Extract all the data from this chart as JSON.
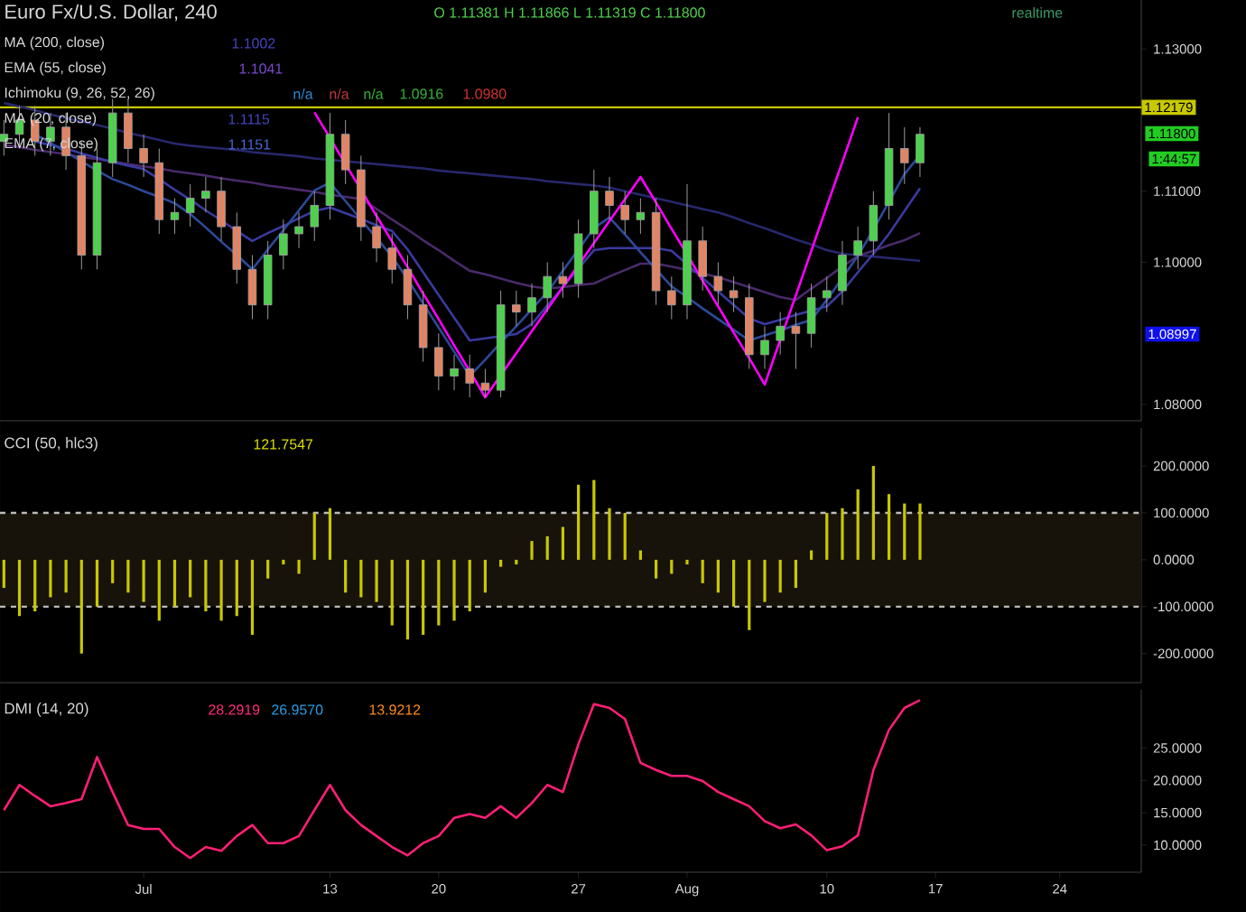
{
  "chart_data": [
    {
      "type": "candlestick",
      "title": "Euro Fx/U.S. Dollar, 240",
      "annotations": [
        "O 1.11381 H 1.11866 L 1.11319 C 1.11800",
        "realtime",
        "MA (200, close)",
        "1.1002",
        "EMA (55, close)",
        "1.1041",
        "Ichimoku (9, 26, 52, 26)",
        "n/a",
        "n/a",
        "n/a",
        "1.0916",
        "1.0980",
        "MA (20, close)",
        "1.1115",
        "EMA (7, close)",
        "1.1151",
        "1:44:57",
        "1.11800",
        "1.08997"
      ],
      "categories": [
        null,
        null,
        null,
        null,
        null,
        null,
        null,
        null,
        null,
        null,
        null,
        null,
        null,
        null,
        null,
        null,
        null,
        null,
        null,
        null,
        null,
        null,
        null,
        null,
        null,
        null,
        null,
        null,
        null,
        null,
        null,
        null,
        null,
        null,
        null,
        null,
        null,
        null,
        null,
        null,
        null,
        null,
        null,
        null,
        null,
        null,
        null,
        null,
        null,
        null,
        null,
        null,
        null,
        null,
        null,
        null,
        null,
        null,
        null,
        null,
        null,
        null,
        null,
        null,
        null,
        null,
        null,
        null,
        null,
        null,
        null,
        null,
        null,
        null
      ],
      "ohlc": [
        [
          1.117,
          1.12,
          1.115,
          1.118
        ],
        [
          1.118,
          1.122,
          1.116,
          1.12
        ],
        [
          1.12,
          1.122,
          1.115,
          1.117
        ],
        [
          1.117,
          1.121,
          1.115,
          1.119
        ],
        [
          1.119,
          1.121,
          1.113,
          1.115
        ],
        [
          1.115,
          1.117,
          1.099,
          1.101
        ],
        [
          1.101,
          1.116,
          1.099,
          1.114
        ],
        [
          1.114,
          1.123,
          1.112,
          1.121
        ],
        [
          1.121,
          1.123,
          1.114,
          1.116
        ],
        [
          1.116,
          1.118,
          1.112,
          1.114
        ],
        [
          1.114,
          1.116,
          1.104,
          1.106
        ],
        [
          1.106,
          1.109,
          1.104,
          1.107
        ],
        [
          1.107,
          1.111,
          1.105,
          1.109
        ],
        [
          1.109,
          1.112,
          1.107,
          1.11
        ],
        [
          1.11,
          1.112,
          1.103,
          1.105
        ],
        [
          1.105,
          1.107,
          1.097,
          1.099
        ],
        [
          1.099,
          1.101,
          1.092,
          1.094
        ],
        [
          1.094,
          1.103,
          1.092,
          1.101
        ],
        [
          1.101,
          1.106,
          1.099,
          1.104
        ],
        [
          1.104,
          1.107,
          1.102,
          1.105
        ],
        [
          1.105,
          1.11,
          1.103,
          1.108
        ],
        [
          1.108,
          1.121,
          1.106,
          1.118
        ],
        [
          1.118,
          1.12,
          1.111,
          1.113
        ],
        [
          1.113,
          1.115,
          1.103,
          1.105
        ],
        [
          1.105,
          1.107,
          1.1,
          1.102
        ],
        [
          1.102,
          1.104,
          1.097,
          1.099
        ],
        [
          1.099,
          1.101,
          1.092,
          1.094
        ],
        [
          1.094,
          1.096,
          1.086,
          1.088
        ],
        [
          1.088,
          1.09,
          1.082,
          1.084
        ],
        [
          1.084,
          1.087,
          1.082,
          1.085
        ],
        [
          1.085,
          1.087,
          1.081,
          1.083
        ],
        [
          1.083,
          1.085,
          1.081,
          1.082
        ],
        [
          1.082,
          1.096,
          1.081,
          1.094
        ],
        [
          1.094,
          1.096,
          1.091,
          1.093
        ],
        [
          1.093,
          1.097,
          1.091,
          1.095
        ],
        [
          1.095,
          1.1,
          1.093,
          1.098
        ],
        [
          1.098,
          1.1,
          1.095,
          1.097
        ],
        [
          1.097,
          1.106,
          1.095,
          1.104
        ],
        [
          1.104,
          1.113,
          1.102,
          1.11
        ],
        [
          1.11,
          1.112,
          1.106,
          1.108
        ],
        [
          1.108,
          1.11,
          1.104,
          1.106
        ],
        [
          1.106,
          1.109,
          1.104,
          1.107
        ],
        [
          1.107,
          1.109,
          1.094,
          1.096
        ],
        [
          1.096,
          1.098,
          1.092,
          1.094
        ],
        [
          1.094,
          1.111,
          1.092,
          1.103
        ],
        [
          1.103,
          1.105,
          1.096,
          1.098
        ],
        [
          1.098,
          1.1,
          1.094,
          1.096
        ],
        [
          1.096,
          1.098,
          1.093,
          1.095
        ],
        [
          1.095,
          1.097,
          1.085,
          1.087
        ],
        [
          1.087,
          1.091,
          1.085,
          1.089
        ],
        [
          1.089,
          1.093,
          1.087,
          1.091
        ],
        [
          1.091,
          1.093,
          1.085,
          1.09
        ],
        [
          1.09,
          1.097,
          1.088,
          1.095
        ],
        [
          1.095,
          1.098,
          1.093,
          1.096
        ],
        [
          1.096,
          1.103,
          1.094,
          1.101
        ],
        [
          1.101,
          1.105,
          1.099,
          1.103
        ],
        [
          1.103,
          1.11,
          1.101,
          1.108
        ],
        [
          1.108,
          1.121,
          1.106,
          1.116
        ],
        [
          1.116,
          1.119,
          1.111,
          1.114
        ],
        [
          1.114,
          1.119,
          1.112,
          1.118
        ],
        null,
        null,
        null,
        null,
        null,
        null,
        null,
        null,
        null,
        null,
        null,
        null,
        null,
        null
      ],
      "series": [
        {
          "type": "line",
          "color": "#28286e",
          "values": [
            1.1224,
            1.1219,
            1.1214,
            1.1208,
            1.1203,
            1.1198,
            1.1193,
            1.1188,
            1.1182,
            1.1177,
            1.1172,
            1.1167,
            1.1164,
            1.1162,
            1.116,
            1.1158,
            1.1155,
            1.1153,
            1.1151,
            1.1149,
            1.1146,
            1.1144,
            1.1142,
            1.114,
            1.1138,
            1.1136,
            1.1134,
            1.1132,
            1.1129,
            1.1127,
            1.1125,
            1.1123,
            1.1121,
            1.1119,
            1.1117,
            1.1114,
            1.1112,
            1.111,
            1.1108,
            1.1105,
            1.11,
            1.1095,
            1.109,
            1.1085,
            1.108,
            1.1075,
            1.107,
            1.1063,
            1.1055,
            1.1048,
            1.104,
            1.1032,
            1.1025,
            1.1017,
            1.1012,
            1.101,
            1.1008,
            1.1006,
            1.1004,
            1.1002,
            null,
            null,
            null,
            null,
            null,
            null,
            null,
            null,
            null,
            null,
            null,
            null,
            null,
            null
          ]
        },
        {
          "type": "line",
          "color": "#4a2a6a",
          "values": [
            1.1165,
            1.1162,
            1.1158,
            1.1155,
            1.1152,
            1.1148,
            1.1145,
            1.1142,
            1.1138,
            1.1135,
            1.1132,
            1.1128,
            1.1125,
            1.1122,
            1.1118,
            1.1115,
            1.1112,
            1.1108,
            1.1105,
            1.1102,
            1.1099,
            1.1095,
            1.1092,
            1.1089,
            1.1075,
            1.106,
            1.1046,
            1.1031,
            1.1017,
            1.1002,
            1.0988,
            1.0983,
            1.0977,
            1.0971,
            1.0966,
            1.0963,
            1.0965,
            1.0968,
            1.097,
            1.098,
            1.0989,
            1.0998,
            1.0998,
            1.0994,
            1.0989,
            1.0984,
            1.0979,
            1.0972,
            1.0965,
            1.0958,
            1.0951,
            1.0947,
            1.0963,
            1.0978,
            1.0994,
            1.1009,
            1.1016,
            1.1024,
            1.1031,
            1.1041,
            null,
            null,
            null,
            null,
            null,
            null,
            null,
            null,
            null,
            null,
            null,
            null,
            null,
            null
          ]
        },
        {
          "type": "line",
          "color": "#3a3aa0",
          "values": [
            null,
            null,
            1.117,
            1.1165,
            1.116,
            1.1153,
            1.1147,
            1.1141,
            1.1136,
            1.1131,
            1.1117,
            1.1102,
            1.1088,
            1.1073,
            1.1059,
            1.1044,
            1.103,
            1.1041,
            1.1051,
            1.1062,
            1.1072,
            1.1077,
            1.1069,
            1.1061,
            1.1052,
            1.1044,
            1.1018,
            1.0986,
            1.0954,
            1.0922,
            1.089,
            1.0893,
            1.0896,
            1.0899,
            1.0913,
            1.0939,
            1.0965,
            1.0991,
            1.1017,
            1.102,
            1.102,
            1.102,
            1.102,
            1.1016,
            1.0997,
            1.0978,
            1.0959,
            1.094,
            1.0921,
            1.0913,
            1.0919,
            1.0926,
            1.0932,
            1.0938,
            1.0959,
            1.0986,
            1.1012,
            1.104,
            1.1072,
            1.1104,
            null,
            null,
            null,
            null,
            null,
            null,
            null,
            null,
            null,
            null,
            null,
            null,
            null,
            null
          ]
        },
        {
          "type": "line",
          "color": "#2c4a9a",
          "values": [
            null,
            null,
            1.118,
            1.1168,
            1.1155,
            1.1142,
            1.1129,
            1.1117,
            1.1109,
            1.11,
            1.1092,
            1.1083,
            1.1068,
            1.1049,
            1.1029,
            1.101,
            1.099,
            1.1018,
            1.1045,
            1.1073,
            1.1101,
            1.1112,
            1.1086,
            1.106,
            1.1034,
            1.1008,
            1.0976,
            1.0942,
            1.0908,
            1.0874,
            1.084,
            1.0863,
            1.0887,
            1.091,
            1.0934,
            1.0958,
            1.0988,
            1.1018,
            1.1048,
            1.1063,
            1.1039,
            1.1014,
            1.099,
            1.0966,
            1.0951,
            1.0935,
            1.092,
            1.0905,
            1.089,
            1.0897,
            1.0904,
            1.0912,
            1.0919,
            1.0947,
            1.0978,
            1.1009,
            1.1046,
            1.1085,
            1.1124,
            1.1151,
            null,
            null,
            null,
            null,
            null,
            null,
            null,
            null,
            null,
            null,
            null,
            null,
            null,
            null
          ]
        },
        {
          "type": "line",
          "color": "#ff00ff",
          "values": [
            null,
            null,
            null,
            null,
            null,
            null,
            null,
            null,
            null,
            null,
            null,
            null,
            null,
            null,
            null,
            null,
            null,
            null,
            null,
            null,
            1.1211,
            1.1175,
            1.1138,
            1.1102,
            1.1065,
            1.1029,
            1.0993,
            1.0956,
            1.092,
            1.0883,
            1.0847,
            1.081,
            1.0841,
            1.0872,
            1.0903,
            1.0934,
            1.0965,
            1.0996,
            1.1027,
            1.1058,
            1.1089,
            1.112,
            1.1084,
            1.1047,
            1.1011,
            1.0974,
            1.0938,
            1.0901,
            1.0865,
            1.0828,
            1.0891,
            1.0953,
            1.1016,
            1.1079,
            1.1141,
            1.1204,
            null,
            null,
            null,
            null,
            null,
            null,
            null,
            null,
            null,
            null,
            null,
            null,
            null,
            null,
            null,
            null,
            null,
            null
          ]
        }
      ],
      "ylim": [
        1.0777,
        1.1369
      ],
      "yticks": [
        {
          "value": 1.08,
          "label": "1.08000"
        },
        {
          "value": 1.1,
          "label": "1.10000"
        },
        {
          "value": 1.11,
          "label": "1.11000"
        },
        {
          "value": 1.13,
          "label": "1.13000"
        }
      ],
      "ref_lines": [
        {
          "axis": "y",
          "value": 1.12179,
          "label": "1.12179",
          "color": "#c8c800"
        }
      ],
      "tick_labels": "y"
    },
    {
      "type": "bar",
      "title": "CCI (50, hlc3)",
      "annotations": [
        "121.7547"
      ],
      "color": "#c8c800",
      "categories": [
        null,
        null,
        null,
        null,
        null,
        null,
        null,
        null,
        null,
        null,
        null,
        null,
        null,
        null,
        null,
        null,
        null,
        null,
        null,
        null,
        null,
        null,
        null,
        null,
        null,
        null,
        null,
        null,
        null,
        null,
        null,
        null,
        null,
        null,
        null,
        null,
        null,
        null,
        null,
        null,
        null,
        null,
        null,
        null,
        null,
        null,
        null,
        null,
        null,
        null,
        null,
        null,
        null,
        null,
        null,
        null,
        null,
        null,
        null,
        null,
        null,
        null,
        null,
        null,
        null,
        null,
        null,
        null,
        null,
        null,
        null,
        null,
        null,
        null
      ],
      "values": [
        -60,
        -120,
        -110,
        -80,
        -70,
        -200,
        -100,
        -50,
        -70,
        -90,
        -130,
        -100,
        -80,
        -110,
        -130,
        -120,
        -160,
        -40,
        -10,
        -30,
        100,
        110,
        -70,
        -80,
        -90,
        -140,
        -170,
        -160,
        -140,
        -130,
        -110,
        -70,
        -15,
        -10,
        40,
        50,
        70,
        160,
        170,
        110,
        100,
        20,
        -40,
        -30,
        -10,
        -50,
        -70,
        -100,
        -150,
        -90,
        -70,
        -60,
        20,
        100,
        110,
        150,
        200,
        140,
        120,
        120,
        null,
        null,
        null,
        null,
        null,
        null,
        null,
        null,
        null,
        null,
        null,
        null,
        null,
        null
      ],
      "ylim": [
        -262,
        281
      ],
      "yticks": [
        {
          "value": -200,
          "label": "-200.0000"
        },
        {
          "value": -100,
          "label": "-100.0000"
        },
        {
          "value": 0,
          "label": "0.0000"
        },
        {
          "value": 100,
          "label": "100.0000"
        },
        {
          "value": 200,
          "label": "200.0000"
        }
      ],
      "ref_lines": [
        {
          "axis": "y",
          "value": 100,
          "color": "#bbbbbb",
          "line_style": "dashed"
        },
        {
          "axis": "y",
          "value": -100,
          "color": "#bbbbbb",
          "line_style": "dashed"
        }
      ],
      "bands": [
        {
          "axis": "y",
          "from": -100,
          "to": 100,
          "color": "#17120a"
        }
      ],
      "tick_labels": "y"
    },
    {
      "type": "line",
      "title": "DMI (14, 20)",
      "annotations": [
        "28.2919",
        "26.9570",
        "13.9212"
      ],
      "color": "#ff1f75",
      "categories": [
        null,
        null,
        null,
        null,
        null,
        null,
        null,
        null,
        null,
        "Jul",
        null,
        null,
        null,
        null,
        null,
        null,
        null,
        null,
        null,
        null,
        null,
        "13",
        null,
        null,
        null,
        null,
        null,
        null,
        "20",
        null,
        null,
        null,
        null,
        null,
        null,
        null,
        null,
        "27",
        null,
        null,
        null,
        null,
        null,
        null,
        "Aug",
        null,
        null,
        null,
        null,
        null,
        null,
        null,
        null,
        "10",
        null,
        null,
        null,
        null,
        null,
        null,
        "17",
        null,
        null,
        null,
        null,
        null,
        null,
        null,
        "24",
        null,
        null,
        null,
        null,
        null
      ],
      "values": [
        15.4,
        19.3,
        17.6,
        16.0,
        16.5,
        17.1,
        23.6,
        18.2,
        13.1,
        12.5,
        12.5,
        9.7,
        8.0,
        9.7,
        9.1,
        11.4,
        13.1,
        10.3,
        10.3,
        11.4,
        15.4,
        19.3,
        15.4,
        13.1,
        11.4,
        9.7,
        8.4,
        10.3,
        11.4,
        14.2,
        14.8,
        14.2,
        16.0,
        14.2,
        16.5,
        19.3,
        18.2,
        25.6,
        31.8,
        31.2,
        29.5,
        22.7,
        21.6,
        20.7,
        20.7,
        19.9,
        18.2,
        17.1,
        16.0,
        13.7,
        12.6,
        13.2,
        11.5,
        9.2,
        9.8,
        11.5,
        21.6,
        27.8,
        31.2,
        32.4,
        null,
        null,
        null,
        null,
        null,
        null,
        null,
        null,
        null,
        null,
        null,
        null,
        null,
        null
      ],
      "ylim": [
        5.8,
        34
      ],
      "yticks": [
        {
          "value": 10,
          "label": "10.0000"
        },
        {
          "value": 15,
          "label": "15.0000"
        },
        {
          "value": 20,
          "label": "20.0000"
        },
        {
          "value": 25,
          "label": "25.0000"
        }
      ]
    }
  ]
}
